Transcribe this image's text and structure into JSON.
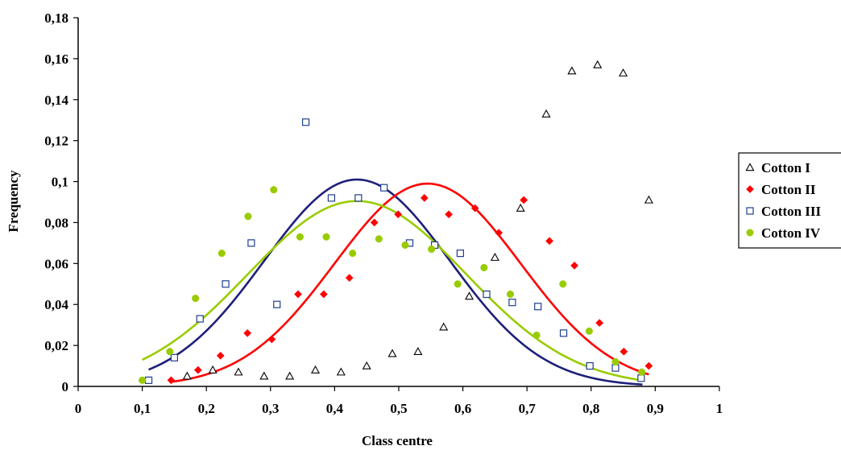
{
  "chart_data": {
    "type": "scatter",
    "xlabel": "Class centre",
    "ylabel": "Frequency",
    "xlim": [
      0,
      1
    ],
    "ylim": [
      0,
      0.18
    ],
    "x_ticks": [
      "0",
      "0,1",
      "0,2",
      "0,3",
      "0,4",
      "0,5",
      "0,6",
      "0,7",
      "0,8",
      "0,9",
      "1"
    ],
    "y_ticks": [
      "0",
      "0,02",
      "0,04",
      "0,06",
      "0,08",
      "0,1",
      "0,12",
      "0,14",
      "0,16",
      "0,18"
    ],
    "grid": false,
    "legend_position": "right",
    "series": [
      {
        "name": "Cotton I",
        "marker": "triangle-open",
        "color": "#000000",
        "x": [
          0.17,
          0.21,
          0.25,
          0.29,
          0.33,
          0.37,
          0.41,
          0.45,
          0.49,
          0.53,
          0.57,
          0.61,
          0.65,
          0.69,
          0.73,
          0.77,
          0.81,
          0.85,
          0.89
        ],
        "y": [
          0.005,
          0.008,
          0.007,
          0.005,
          0.005,
          0.008,
          0.007,
          0.01,
          0.016,
          0.017,
          0.029,
          0.044,
          0.063,
          0.087,
          0.133,
          0.154,
          0.157,
          0.153,
          0.091
        ]
      },
      {
        "name": "Cotton II",
        "marker": "diamond-filled",
        "color": "#ff0000",
        "x": [
          0.145,
          0.187,
          0.222,
          0.264,
          0.302,
          0.343,
          0.383,
          0.423,
          0.462,
          0.499,
          0.54,
          0.578,
          0.619,
          0.656,
          0.695,
          0.735,
          0.774,
          0.813,
          0.851,
          0.89
        ],
        "y": [
          0.003,
          0.008,
          0.015,
          0.026,
          0.023,
          0.045,
          0.045,
          0.053,
          0.08,
          0.084,
          0.092,
          0.084,
          0.087,
          0.075,
          0.091,
          0.071,
          0.059,
          0.031,
          0.017,
          0.01
        ]
      },
      {
        "name": "Cotton III",
        "marker": "square-open",
        "color": "#1f3f8f",
        "x": [
          0.11,
          0.15,
          0.19,
          0.23,
          0.27,
          0.31,
          0.355,
          0.395,
          0.437,
          0.477,
          0.517,
          0.556,
          0.596,
          0.637,
          0.677,
          0.717,
          0.757,
          0.798,
          0.838,
          0.878
        ],
        "y": [
          0.003,
          0.014,
          0.033,
          0.05,
          0.07,
          0.04,
          0.129,
          0.092,
          0.092,
          0.097,
          0.07,
          0.069,
          0.065,
          0.045,
          0.041,
          0.039,
          0.026,
          0.01,
          0.009,
          0.004
        ]
      },
      {
        "name": "Cotton IV",
        "marker": "circle-filled",
        "color": "#99cc00",
        "x": [
          0.1,
          0.143,
          0.183,
          0.224,
          0.265,
          0.305,
          0.346,
          0.387,
          0.428,
          0.469,
          0.51,
          0.551,
          0.592,
          0.633,
          0.674,
          0.715,
          0.756,
          0.797,
          0.838,
          0.879
        ],
        "y": [
          0.003,
          0.017,
          0.043,
          0.065,
          0.083,
          0.096,
          0.073,
          0.073,
          0.065,
          0.072,
          0.069,
          0.067,
          0.05,
          0.058,
          0.045,
          0.025,
          0.05,
          0.027,
          0.012,
          0.007
        ]
      }
    ],
    "fit_curves": [
      {
        "color": "#1f1f7a",
        "x_range": [
          0.11,
          0.88
        ],
        "peak": 0.101,
        "center": 0.435,
        "sigma": 0.145
      },
      {
        "color": "#ff0000",
        "x_range": [
          0.145,
          0.89
        ],
        "peak": 0.099,
        "center": 0.545,
        "sigma": 0.145
      },
      {
        "color": "#99cc00",
        "x_range": [
          0.1,
          0.88
        ],
        "peak": 0.0905,
        "center": 0.435,
        "sigma": 0.17
      }
    ]
  }
}
